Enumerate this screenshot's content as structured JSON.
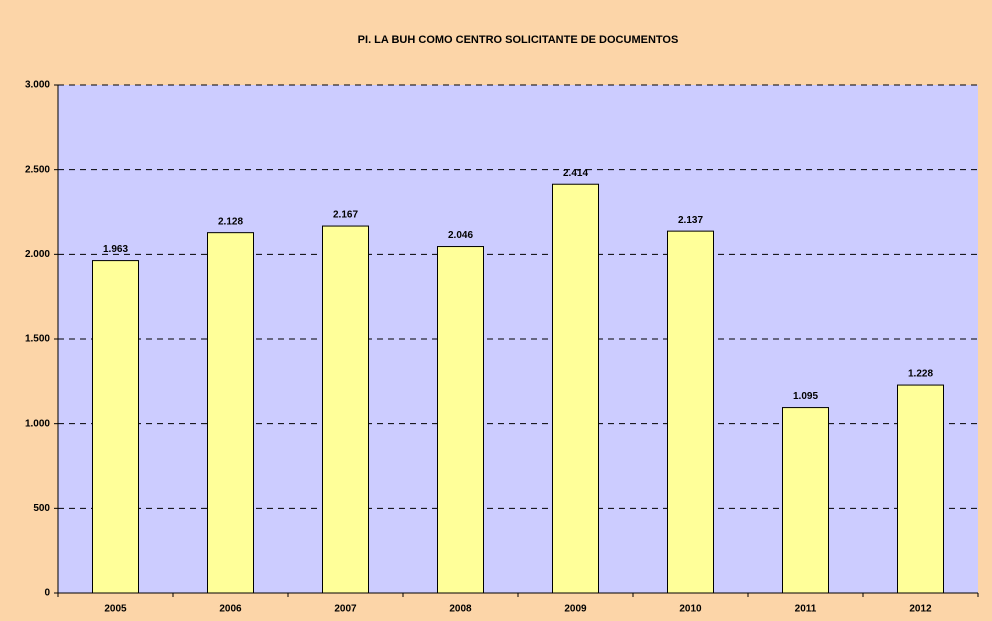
{
  "chart_data": {
    "type": "bar",
    "title": "PI. LA BUH COMO CENTRO SOLICITANTE DE DOCUMENTOS",
    "categories": [
      "2005",
      "2006",
      "2007",
      "2008",
      "2009",
      "2010",
      "2011",
      "2012"
    ],
    "values": [
      1963,
      2128,
      2167,
      2046,
      2414,
      2137,
      1095,
      1228
    ],
    "value_labels": [
      "1.963",
      "2.128",
      "2.167",
      "2.046",
      "2.414",
      "2.137",
      "1.095",
      "1.228"
    ],
    "color": "#ffff99",
    "ylim": [
      0,
      3000
    ],
    "yticks": [
      0,
      500,
      {
        "value": 1000,
        "label": "1.000"
      },
      {
        "value": 1500,
        "label": "1.500"
      },
      {
        "value": 2000,
        "label": "2.000"
      },
      {
        "value": 2500,
        "label": "2.500"
      },
      {
        "value": 3000,
        "label": "3.000"
      }
    ],
    "grid": true
  }
}
